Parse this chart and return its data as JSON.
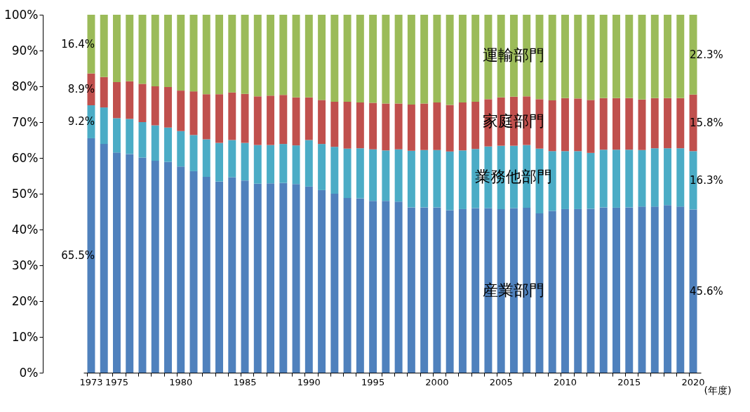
{
  "chart_data": {
    "type": "bar",
    "stacked": true,
    "xlabel": "(年度)",
    "categories": [
      "1973",
      null,
      "1975",
      null,
      null,
      null,
      null,
      "1980",
      null,
      null,
      null,
      null,
      "1985",
      null,
      null,
      null,
      null,
      "1990",
      null,
      null,
      null,
      null,
      "1995",
      null,
      null,
      null,
      null,
      "2000",
      null,
      null,
      null,
      null,
      "2005",
      null,
      null,
      null,
      null,
      "2010",
      null,
      null,
      null,
      null,
      "2015",
      null,
      null,
      null,
      null,
      "2020"
    ],
    "ylim": [
      0,
      100
    ],
    "yticks": [
      {
        "value": 0,
        "label": "0%"
      },
      {
        "value": 10,
        "label": "10%"
      },
      {
        "value": 20,
        "label": "20%"
      },
      {
        "value": 30,
        "label": "30%"
      },
      {
        "value": 40,
        "label": "40%"
      },
      {
        "value": 50,
        "label": "50%"
      },
      {
        "value": 60,
        "label": "60%"
      },
      {
        "value": 70,
        "label": "70%"
      },
      {
        "value": 80,
        "label": "80%"
      },
      {
        "value": 90,
        "label": "90%"
      },
      {
        "value": 100,
        "label": "100%"
      }
    ],
    "series": [
      {
        "name": "産業部門",
        "color": "#4f81bd",
        "values": [
          65.5,
          63.9,
          61.5,
          61.1,
          60.1,
          59.2,
          58.9,
          57.6,
          56.3,
          54.7,
          53.4,
          54.6,
          53.7,
          52.8,
          52.9,
          53.0,
          52.7,
          52.0,
          51.0,
          50.0,
          48.8,
          48.7,
          48.0,
          48.0,
          47.8,
          46.2,
          46.2,
          46.2,
          45.4,
          45.7,
          46.0,
          46.0,
          45.7,
          46.0,
          46.1,
          44.5,
          45.2,
          45.7,
          45.7,
          45.8,
          46.2,
          46.1,
          46.2,
          46.4,
          46.4,
          46.8,
          46.4,
          45.6
        ],
        "value_labels": [
          "65.5%",
          null,
          null,
          null,
          null,
          null,
          null,
          null,
          null,
          null,
          null,
          null,
          null,
          null,
          null,
          null,
          null,
          null,
          null,
          null,
          null,
          null,
          null,
          null,
          null,
          null,
          null,
          null,
          null,
          null,
          null,
          null,
          null,
          null,
          null,
          null,
          null,
          null,
          null,
          null,
          null,
          null,
          null,
          null,
          null,
          null,
          null,
          "45.6%"
        ]
      },
      {
        "name": "業務他部門",
        "color": "#4bacc6",
        "values": [
          9.2,
          10.2,
          9.6,
          9.8,
          9.9,
          9.9,
          9.6,
          9.9,
          10.1,
          10.5,
          10.8,
          10.4,
          10.5,
          10.8,
          10.7,
          10.9,
          10.8,
          13.0,
          12.9,
          13.1,
          13.8,
          14.0,
          14.4,
          14.1,
          14.6,
          15.8,
          16.0,
          16.0,
          16.4,
          16.4,
          16.5,
          17.2,
          17.7,
          17.4,
          17.5,
          18.1,
          16.7,
          16.2,
          16.2,
          15.6,
          16.1,
          16.2,
          16.1,
          15.8,
          16.3,
          15.9,
          16.3,
          16.3
        ],
        "value_labels": [
          "9.2%",
          null,
          null,
          null,
          null,
          null,
          null,
          null,
          null,
          null,
          null,
          null,
          null,
          null,
          null,
          null,
          null,
          null,
          null,
          null,
          null,
          null,
          null,
          null,
          null,
          null,
          null,
          null,
          null,
          null,
          null,
          null,
          null,
          null,
          null,
          null,
          null,
          null,
          null,
          null,
          null,
          null,
          null,
          null,
          null,
          null,
          null,
          "16.3%"
        ]
      },
      {
        "name": "家庭部門",
        "color": "#c0504d",
        "values": [
          8.9,
          8.5,
          10.1,
          10.5,
          10.7,
          10.9,
          11.3,
          11.3,
          12.2,
          12.6,
          13.6,
          13.3,
          13.7,
          13.6,
          13.8,
          13.7,
          13.4,
          11.9,
          12.3,
          12.6,
          13.1,
          12.8,
          13.0,
          13.1,
          12.8,
          12.9,
          13.0,
          13.3,
          13.0,
          13.4,
          13.2,
          13.2,
          13.5,
          13.7,
          13.6,
          13.8,
          14.2,
          14.8,
          14.7,
          14.8,
          14.4,
          14.4,
          14.4,
          14.1,
          14.0,
          14.0,
          14.0,
          15.8
        ],
        "value_labels": [
          "8.9%",
          null,
          null,
          null,
          null,
          null,
          null,
          null,
          null,
          null,
          null,
          null,
          null,
          null,
          null,
          null,
          null,
          null,
          null,
          null,
          null,
          null,
          null,
          null,
          null,
          null,
          null,
          null,
          null,
          null,
          null,
          null,
          null,
          null,
          null,
          null,
          null,
          null,
          null,
          null,
          null,
          null,
          null,
          null,
          null,
          null,
          null,
          "15.8%"
        ]
      },
      {
        "name": "運輸部門",
        "color": "#9bbb59",
        "values": [
          16.4,
          17.4,
          18.8,
          18.6,
          19.3,
          20.0,
          20.2,
          21.2,
          21.4,
          22.2,
          22.2,
          21.7,
          22.1,
          22.8,
          22.6,
          22.4,
          23.1,
          23.1,
          23.8,
          24.3,
          24.3,
          24.5,
          24.6,
          24.8,
          24.8,
          25.1,
          24.8,
          24.5,
          25.2,
          24.5,
          24.3,
          23.6,
          23.1,
          22.9,
          22.8,
          23.6,
          23.9,
          23.3,
          23.4,
          23.8,
          23.3,
          23.3,
          23.3,
          23.7,
          23.3,
          23.3,
          23.3,
          22.3
        ],
        "value_labels": [
          "16.4%",
          null,
          null,
          null,
          null,
          null,
          null,
          null,
          null,
          null,
          null,
          null,
          null,
          null,
          null,
          null,
          null,
          null,
          null,
          null,
          null,
          null,
          null,
          null,
          null,
          null,
          null,
          null,
          null,
          null,
          null,
          null,
          null,
          null,
          null,
          null,
          null,
          null,
          null,
          null,
          null,
          null,
          null,
          null,
          null,
          null,
          null,
          "22.3%"
        ]
      }
    ]
  }
}
